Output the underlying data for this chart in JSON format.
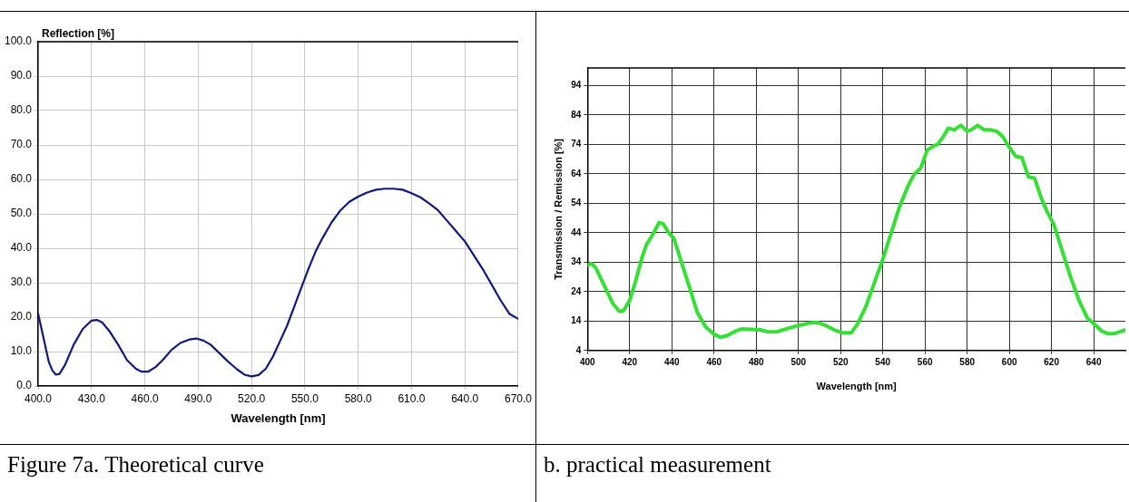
{
  "chart_data": [
    {
      "type": "line",
      "xlabel": "Wavelength [nm]",
      "ylabel": "Reflection [%]",
      "x": [
        400,
        403,
        406,
        408,
        410,
        412,
        415,
        420,
        425,
        430,
        433,
        436,
        440,
        445,
        450,
        455,
        458,
        462,
        466,
        470,
        475,
        480,
        485,
        489,
        493,
        497,
        502,
        507,
        512,
        516,
        520,
        524,
        528,
        532,
        536,
        540,
        544,
        548,
        552,
        556,
        560,
        565,
        570,
        575,
        580,
        585,
        590,
        595,
        600,
        605,
        610,
        615,
        620,
        625,
        630,
        635,
        640,
        645,
        650,
        655,
        660,
        665,
        670
      ],
      "series": [
        {
          "color": "#101a78",
          "values": [
            21,
            14,
            7,
            4.5,
            3.3,
            3.5,
            6,
            12,
            16.5,
            19,
            19.2,
            18.5,
            16,
            12,
            7.5,
            5,
            4.2,
            4.2,
            5.5,
            7.5,
            10.5,
            12.5,
            13.5,
            13.8,
            13.2,
            12,
            9.5,
            7,
            4.8,
            3.3,
            2.8,
            3.2,
            5,
            8.5,
            13,
            17.5,
            23,
            28.5,
            34,
            39,
            43,
            47.5,
            51,
            53.5,
            55,
            56.2,
            57,
            57.3,
            57.3,
            57,
            56,
            54.8,
            53,
            51,
            48,
            45,
            42,
            38,
            34,
            29.5,
            25,
            21,
            19.5
          ]
        }
      ],
      "xlim": [
        400,
        670
      ],
      "xticks": [
        {
          "value": 400,
          "label": "400.0"
        },
        {
          "value": 430,
          "label": "430.0"
        },
        {
          "value": 460,
          "label": "460.0"
        },
        {
          "value": 490,
          "label": "490.0"
        },
        {
          "value": 520,
          "label": "520.0"
        },
        {
          "value": 550,
          "label": "550.0"
        },
        {
          "value": 580,
          "label": "580.0"
        },
        {
          "value": 610,
          "label": "610.0"
        },
        {
          "value": 640,
          "label": "640.0"
        },
        {
          "value": 670,
          "label": "670.0"
        }
      ],
      "ylim": [
        0,
        100
      ],
      "yticks": [
        {
          "value": 0,
          "label": "0.0"
        },
        {
          "value": 10,
          "label": "10.0"
        },
        {
          "value": 20,
          "label": "20.0"
        },
        {
          "value": 30,
          "label": "30.0"
        },
        {
          "value": 40,
          "label": "40.0"
        },
        {
          "value": 50,
          "label": "50.0"
        },
        {
          "value": 60,
          "label": "60.0"
        },
        {
          "value": 70,
          "label": "70.0"
        },
        {
          "value": 80,
          "label": "80.0"
        },
        {
          "value": 90,
          "label": "90.0"
        },
        {
          "value": 100,
          "label": "100.0"
        }
      ],
      "grid": true,
      "annotations": [
        "Figure 7a. Theoretical curve"
      ]
    },
    {
      "type": "line",
      "xlabel": "Wavelength [nm]",
      "ylabel": "Transmission / Remission [%]",
      "x": [
        400,
        402,
        404,
        408,
        412,
        415,
        417,
        420,
        423,
        426,
        428,
        431,
        434,
        436,
        438,
        441,
        445,
        449,
        452,
        456,
        460,
        463,
        466,
        470,
        473,
        478,
        482,
        486,
        490,
        495,
        500,
        505,
        509,
        513,
        517,
        521,
        525,
        528,
        532,
        536,
        540,
        544,
        548,
        552,
        555,
        558,
        561,
        564,
        566,
        569,
        571,
        574,
        577,
        580,
        582,
        585,
        588,
        591,
        594,
        597,
        600,
        603,
        606,
        609,
        612,
        615,
        618,
        621,
        625,
        629,
        633,
        637,
        641,
        644,
        647,
        650,
        655
      ],
      "series": [
        {
          "color": "#33e033",
          "values": [
            33,
            33.5,
            32,
            26,
            20,
            17.3,
            17.5,
            21,
            28,
            36,
            40,
            43.5,
            47.5,
            47,
            44.5,
            42,
            33,
            24,
            17,
            12,
            9.5,
            8.5,
            9,
            10.5,
            11.3,
            11.2,
            11,
            10.3,
            10.4,
            11.5,
            12.5,
            13.3,
            13.5,
            12.5,
            11,
            10,
            10,
            13,
            19,
            27,
            35,
            44,
            53,
            60,
            64,
            66,
            72,
            73.5,
            74,
            77,
            79.5,
            79,
            80.5,
            78.5,
            79,
            80.5,
            79,
            79,
            78.5,
            76.5,
            73,
            70,
            69.5,
            63,
            62.5,
            56,
            51,
            47,
            38,
            29,
            21,
            15,
            12.5,
            10.5,
            9.7,
            9.8,
            11
          ]
        }
      ],
      "xlim": [
        400,
        655
      ],
      "xticks": [
        400,
        420,
        440,
        460,
        480,
        500,
        520,
        540,
        560,
        580,
        600,
        620,
        640
      ],
      "ylim": [
        4,
        100
      ],
      "yticks": [
        4,
        14,
        24,
        34,
        44,
        54,
        64,
        74,
        84,
        94
      ],
      "grid": true,
      "annotations": [
        "b. practical measurement"
      ]
    }
  ]
}
